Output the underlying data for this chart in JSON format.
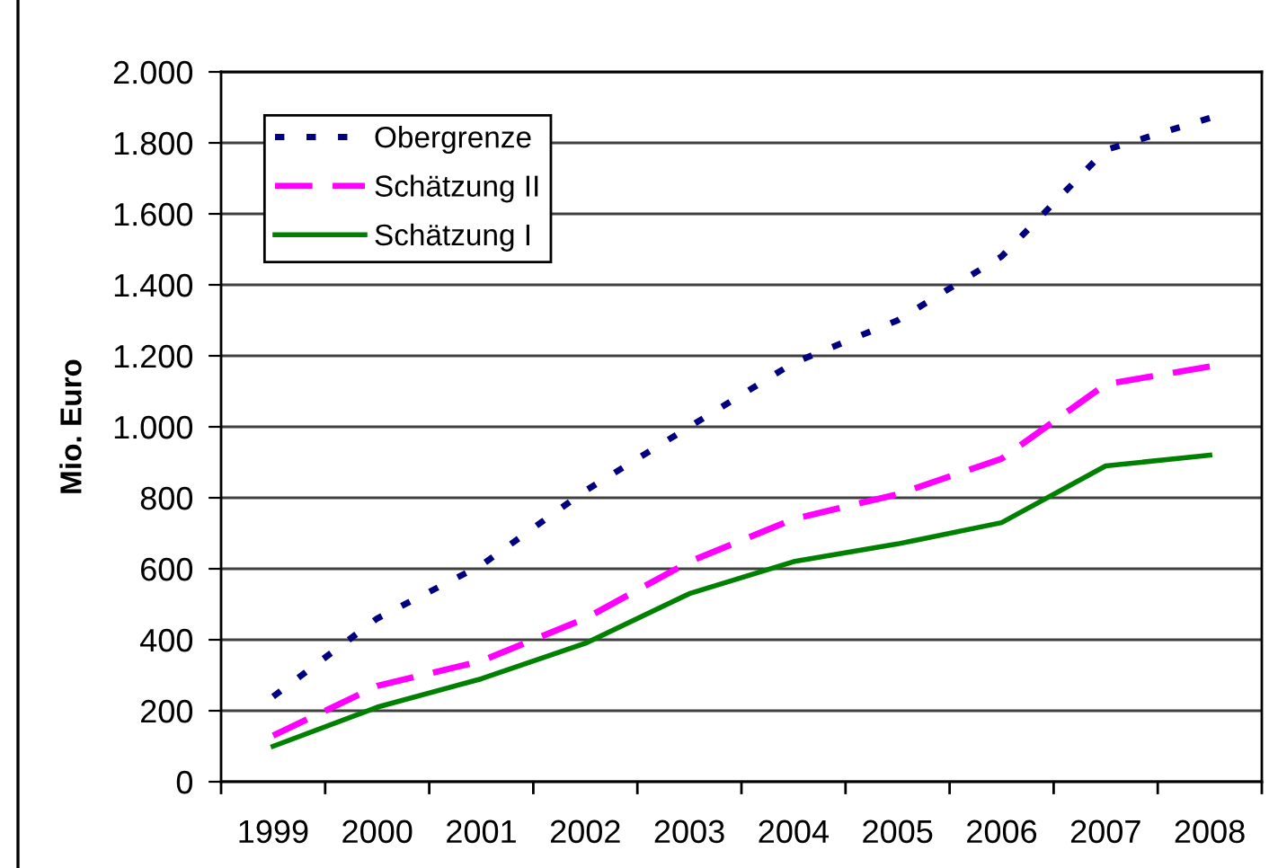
{
  "chart_data": {
    "type": "line",
    "ylabel": "Mio. Euro",
    "categories": [
      "1999",
      "2000",
      "2001",
      "2002",
      "2003",
      "2004",
      "2005",
      "2006",
      "2007",
      "2008"
    ],
    "series": [
      {
        "name": "Obergrenze",
        "color": "#000080",
        "line_style": "dotted",
        "values": [
          240,
          460,
          610,
          820,
          1000,
          1180,
          1300,
          1480,
          1780,
          1870
        ]
      },
      {
        "name": "Schätzung II",
        "color": "#ff00ff",
        "line_style": "dashed",
        "values": [
          130,
          270,
          340,
          460,
          620,
          740,
          810,
          910,
          1120,
          1170
        ]
      },
      {
        "name": "Schätzung I",
        "color": "#008000",
        "line_style": "solid",
        "values": [
          100,
          210,
          290,
          390,
          530,
          620,
          670,
          730,
          890,
          920
        ]
      }
    ],
    "ylim": [
      0,
      2000
    ],
    "yticks": [
      0,
      200,
      400,
      600,
      800,
      {
        "value": 1000,
        "label": "1.000"
      },
      {
        "value": 1200,
        "label": "1.200"
      },
      {
        "value": 1400,
        "label": "1.400"
      },
      {
        "value": 1600,
        "label": "1.600"
      },
      {
        "value": 1800,
        "label": "1.800"
      },
      {
        "value": 2000,
        "label": "2.000"
      }
    ],
    "grid": "y",
    "legend": "top left"
  }
}
